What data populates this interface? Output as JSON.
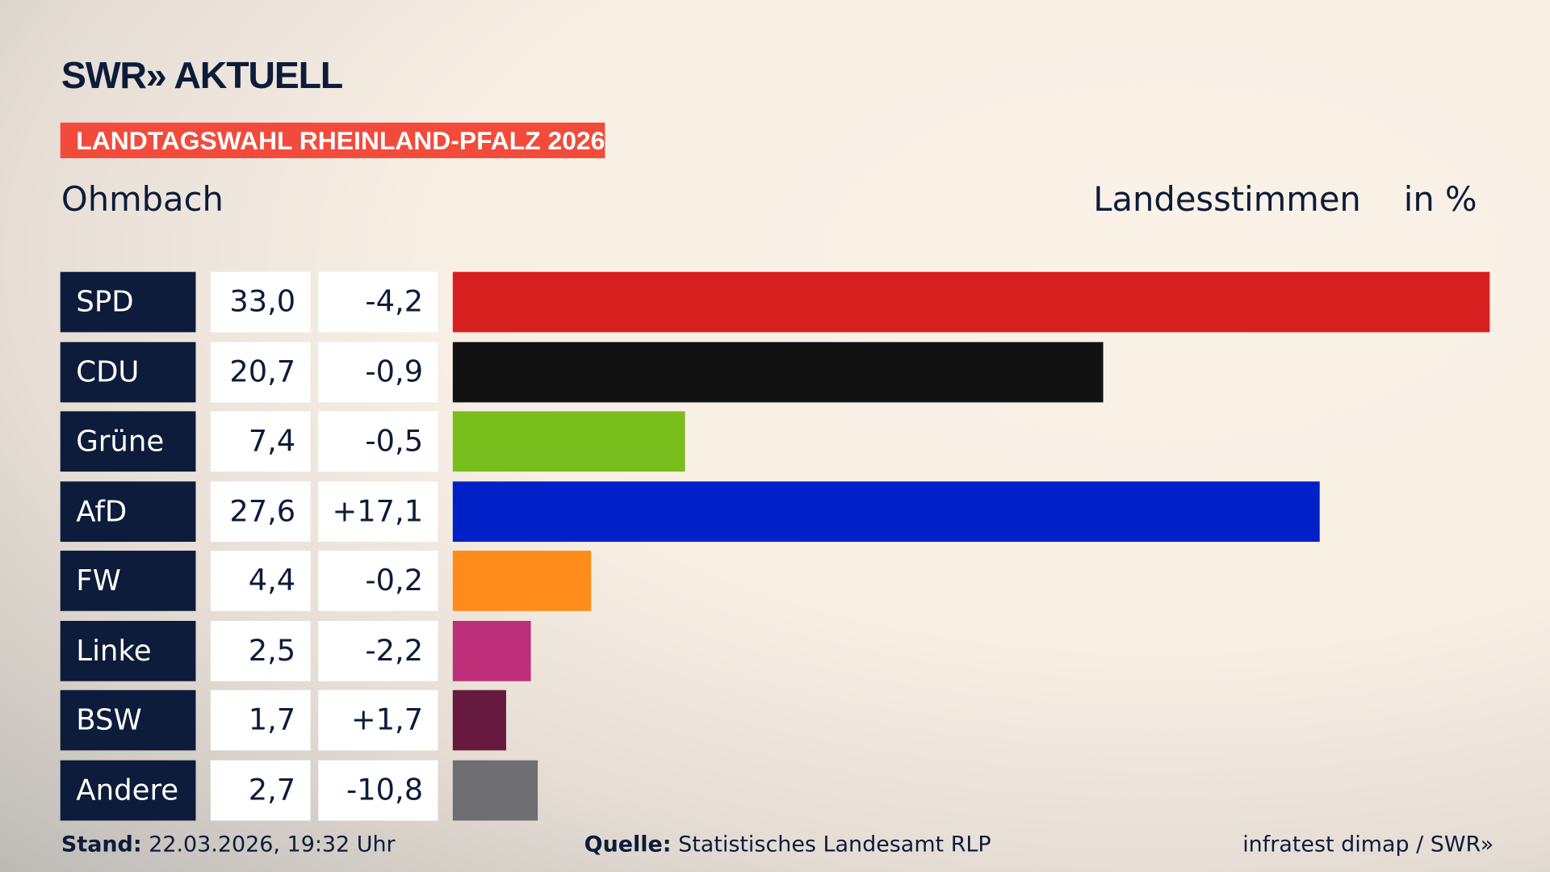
{
  "header": {
    "brand": "SWR» AKTUELL",
    "banner": "LANDTAGSWAHL RHEINLAND-PFALZ 2026",
    "location": "Ohmbach",
    "vote_type": "Landesstimmen",
    "unit": "in %"
  },
  "chart_data": {
    "type": "bar",
    "orientation": "horizontal",
    "xlim": [
      0,
      33
    ],
    "categories": [
      "SPD",
      "CDU",
      "Grüne",
      "AfD",
      "FW",
      "Linke",
      "BSW",
      "Andere"
    ],
    "values": [
      "33,0",
      "20,7",
      "7,4",
      "27,6",
      "4,4",
      "2,5",
      "1,7",
      "2,7"
    ],
    "numeric_values": [
      33.0,
      20.7,
      7.4,
      27.6,
      4.4,
      2.5,
      1.7,
      2.7
    ],
    "changes": [
      "-4,2",
      "-0,9",
      "-0,5",
      "+17,1",
      "-0,2",
      "-2,2",
      "+1,7",
      "-10,8"
    ],
    "colors": [
      "#d81f20",
      "#121212",
      "#7abe1e",
      "#0020c8",
      "#ff8c1a",
      "#bd2f78",
      "#661a3d",
      "#6f6f71"
    ]
  },
  "footer": {
    "stand_label": "Stand:",
    "stand_value": "22.03.2026, 19:32 Uhr",
    "source_label": "Quelle:",
    "source_value": "Statistisches Landesamt RLP",
    "credit": "infratest dimap / SWR»"
  }
}
